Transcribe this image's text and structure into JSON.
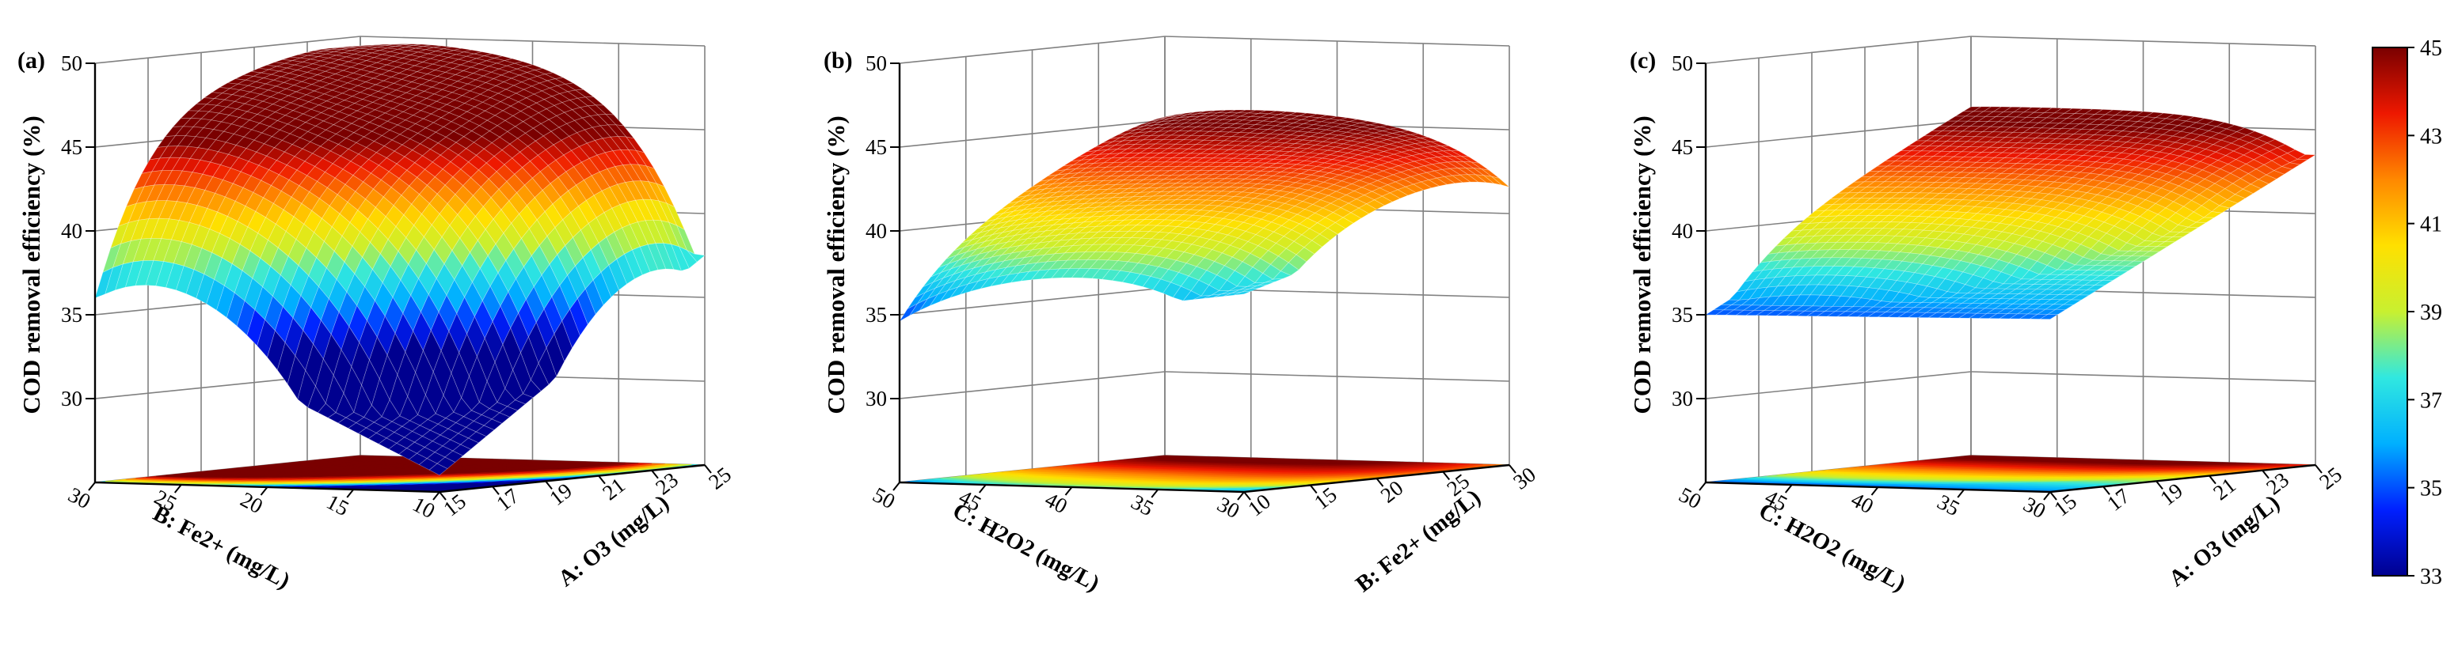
{
  "chart_data": [
    {
      "type": "surface",
      "panel_label": "(a)",
      "zlabel": "COD removal efficiency (%)",
      "zlim": [
        25,
        50
      ],
      "zticks": [
        "30",
        "35",
        "40",
        "45",
        "50"
      ],
      "x_axis": {
        "label": "A: O3 (mg/L)",
        "range": [
          15,
          25
        ],
        "ticks": [
          "15",
          "17",
          "19",
          "21",
          "23",
          "25"
        ]
      },
      "y_axis": {
        "label": "B: Fe2+ (mg/L)",
        "range": [
          10,
          30
        ],
        "ticks": [
          "10",
          "15",
          "20",
          "25",
          "30"
        ]
      },
      "z_corners": {
        "front": 26.0,
        "left": 36.0,
        "right": 37.5,
        "back": 40.0
      },
      "z_peak": {
        "a": 0.68,
        "b": 0.7,
        "z": 47.8
      },
      "contour_projection": true
    },
    {
      "type": "surface",
      "panel_label": "(b)",
      "zlabel": "COD removal efficiency (%)",
      "zlim": [
        25,
        50
      ],
      "zticks": [
        "30",
        "35",
        "40",
        "45",
        "50"
      ],
      "x_axis": {
        "label": "B: Fe2+ (mg/L)",
        "range": [
          10,
          30
        ],
        "ticks": [
          "10",
          "15",
          "20",
          "25",
          "30"
        ]
      },
      "y_axis": {
        "label": "C: H2O2 (mg/L)",
        "range": [
          30,
          50
        ],
        "ticks": [
          "30",
          "35",
          "40",
          "45",
          "50"
        ]
      },
      "z_corners": {
        "front": 36.8,
        "left": 34.0,
        "right": 41.5,
        "back": 42.5
      },
      "z_peak": {
        "a": 0.6,
        "b": 0.62,
        "z": 43.2
      },
      "contour_projection": true
    },
    {
      "type": "surface",
      "panel_label": "(c)",
      "zlabel": "COD removal efficiency (%)",
      "zlim": [
        25,
        50
      ],
      "zticks": [
        "30",
        "35",
        "40",
        "45",
        "50"
      ],
      "x_axis": {
        "label": "A: O3 (mg/L)",
        "range": [
          15,
          25
        ],
        "ticks": [
          "15",
          "17",
          "19",
          "21",
          "23",
          "25"
        ]
      },
      "y_axis": {
        "label": "C: H2O2 (mg/L)",
        "range": [
          30,
          50
        ],
        "ticks": [
          "30",
          "35",
          "40",
          "45",
          "50"
        ]
      },
      "z_corners": {
        "front": 35.3,
        "left": 35.0,
        "right": 43.5,
        "back": 43.5
      },
      "z_peak": {
        "a": 0.8,
        "b": 0.75,
        "z": 44.2
      },
      "contour_projection": true
    }
  ],
  "colorbar": {
    "range": [
      33,
      45
    ],
    "ticks": [
      "33",
      "35",
      "37",
      "39",
      "41",
      "43",
      "45"
    ],
    "colors": [
      "#00008f",
      "#0020ff",
      "#00b0ff",
      "#30e8e0",
      "#c8f030",
      "#ffe000",
      "#ff8800",
      "#ee1800",
      "#7a0000"
    ]
  }
}
